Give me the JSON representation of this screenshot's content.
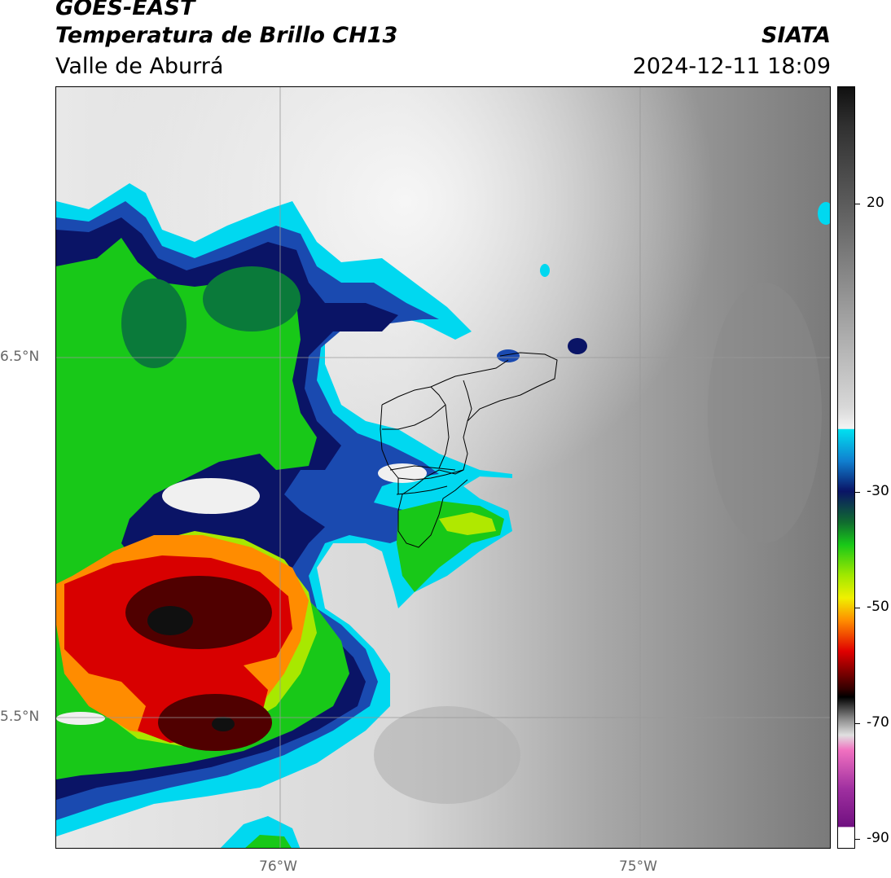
{
  "header": {
    "satellite": "GOES-EAST",
    "product": "Temperatura de Brillo CH13",
    "region": "Valle de Aburrá",
    "organization": "SIATA",
    "datetime": "2024-12-11 18:09"
  },
  "map": {
    "lat_labels": [
      "6.5°N",
      "5.5°N"
    ],
    "lon_labels": [
      "76°W",
      "75°W"
    ]
  },
  "colorbar": {
    "tick_labels": [
      "20",
      "-30",
      "-50",
      "-70",
      "-90"
    ],
    "colors": {
      "warm_gray_dark": "#3a3a3a",
      "warm_gray_light": "#f4f4f4",
      "cyan": "#00d8f0",
      "blue": "#0a3aa0",
      "navy": "#0a1466",
      "green": "#18d018",
      "yellow": "#f0f000",
      "orange": "#ff8c00",
      "red": "#e00000",
      "dark_red": "#300000",
      "pink": "#f070c0",
      "purple": "#701080"
    }
  }
}
